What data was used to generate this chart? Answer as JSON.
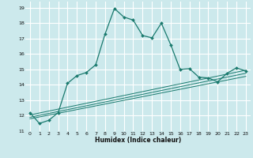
{
  "title": "",
  "xlabel": "Humidex (Indice chaleur)",
  "bg_color": "#cce9ec",
  "grid_color": "#ffffff",
  "line_color": "#1a7a6e",
  "xlim": [
    -0.5,
    23.5
  ],
  "ylim": [
    11,
    19.4
  ],
  "xticks": [
    0,
    1,
    2,
    3,
    4,
    5,
    6,
    7,
    8,
    9,
    10,
    11,
    12,
    13,
    14,
    15,
    16,
    17,
    18,
    19,
    20,
    21,
    22,
    23
  ],
  "yticks": [
    11,
    12,
    13,
    14,
    15,
    16,
    17,
    18,
    19
  ],
  "main_x": [
    0,
    1,
    2,
    3,
    4,
    5,
    6,
    7,
    8,
    9,
    10,
    11,
    12,
    13,
    14,
    15,
    16,
    17,
    18,
    19,
    20,
    21,
    22,
    23
  ],
  "main_y": [
    12.2,
    11.5,
    11.7,
    12.2,
    14.1,
    14.6,
    14.8,
    15.3,
    17.3,
    18.95,
    18.4,
    18.2,
    17.2,
    17.05,
    18.0,
    16.6,
    15.0,
    15.05,
    14.5,
    14.45,
    14.2,
    14.75,
    15.1,
    14.9
  ],
  "line1_x": [
    0,
    23
  ],
  "line1_y": [
    11.8,
    14.55
  ],
  "line2_x": [
    0,
    23
  ],
  "line2_y": [
    11.9,
    14.75
  ],
  "line3_x": [
    0,
    23
  ],
  "line3_y": [
    12.05,
    14.95
  ]
}
